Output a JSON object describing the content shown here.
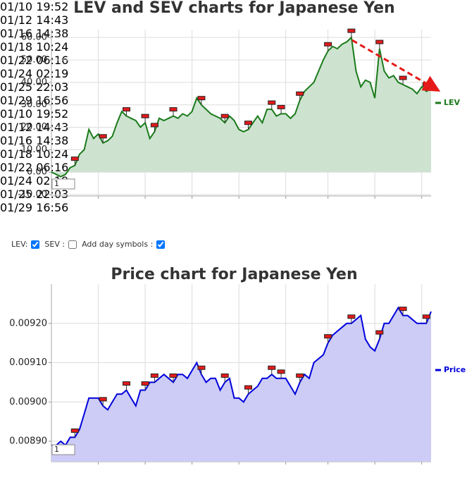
{
  "chart_data": [
    {
      "type": "line",
      "title": "LEV and SEV charts for Japanese Yen",
      "categories": [
        null,
        null,
        null,
        null,
        null,
        null,
        null,
        null,
        null,
        null,
        "01/10\n19:52",
        null,
        null,
        null,
        null,
        null,
        null,
        null,
        null,
        null,
        "01/12\n14:43",
        null,
        null,
        null,
        null,
        null,
        null,
        null,
        null,
        null,
        "01/16\n14:38",
        null,
        null,
        null,
        null,
        null,
        null,
        null,
        null,
        null,
        "01/18\n10:24",
        null,
        null,
        null,
        null,
        null,
        null,
        null,
        null,
        null,
        "01/22\n06:16",
        null,
        null,
        null,
        null,
        null,
        null,
        null,
        null,
        "01/24\n02:19",
        null,
        null,
        null,
        null,
        null,
        null,
        null,
        null,
        null,
        "01/25\n22:03",
        null,
        null,
        null,
        null,
        null,
        null,
        null,
        null,
        null,
        "01/29\n16:56",
        null,
        null
      ],
      "series": [
        {
          "name": "LEV",
          "color": "#1a7a1a",
          "fill": "#cde3d0",
          "values": [
            0,
            -1,
            -2,
            -1,
            2,
            3,
            8,
            10,
            19,
            15,
            17,
            13,
            14,
            16,
            22,
            27,
            25,
            24,
            23,
            20,
            22,
            15,
            18,
            24,
            23,
            24,
            25,
            24,
            26,
            25,
            27,
            33,
            30,
            28,
            26,
            25,
            24,
            22,
            25,
            23,
            19,
            18,
            19,
            22,
            25,
            22,
            28,
            28,
            25,
            26,
            26,
            24,
            26,
            32,
            36,
            38,
            40,
            45,
            50,
            54,
            56,
            55,
            57,
            58,
            60,
            45,
            38,
            41,
            40,
            33,
            55,
            45,
            42,
            43,
            40,
            39,
            38,
            37,
            35,
            38,
            36,
            37
          ]
        }
      ],
      "day_symbols": [
        5,
        11,
        16,
        20,
        22,
        26,
        32,
        37,
        42,
        47,
        49,
        53,
        59,
        64,
        70,
        75,
        80
      ],
      "ylim": [
        -10.6,
        63.5
      ],
      "yticks": [
        {
          "value": 60,
          "label": "60.00"
        },
        {
          "value": 50,
          "label": "50.00"
        },
        {
          "value": 40,
          "label": "40.00"
        },
        {
          "value": 30,
          "label": "30.00"
        },
        {
          "value": 20,
          "label": "20.00"
        },
        {
          "value": 10,
          "label": "10.00"
        },
        {
          "value": 0,
          "label": "0.00"
        },
        {
          "value": -10,
          "label": "-10.00"
        }
      ],
      "grid": true,
      "legend": "right",
      "range_box": "1"
    },
    {
      "type": "line",
      "title": "Price chart for Japanese Yen",
      "categories": [
        null,
        null,
        null,
        null,
        null,
        null,
        null,
        null,
        null,
        null,
        "01/10\n19:52",
        null,
        null,
        null,
        null,
        null,
        null,
        null,
        null,
        null,
        "01/12\n14:43",
        null,
        null,
        null,
        null,
        null,
        null,
        null,
        null,
        null,
        "01/16\n14:38",
        null,
        null,
        null,
        null,
        null,
        null,
        null,
        null,
        null,
        "01/18\n10:24",
        null,
        null,
        null,
        null,
        null,
        null,
        null,
        null,
        null,
        "01/22\n06:16",
        null,
        null,
        null,
        null,
        null,
        null,
        null,
        null,
        "01/24\n02:19",
        null,
        null,
        null,
        null,
        null,
        null,
        null,
        null,
        null,
        "01/25\n22:03",
        null,
        null,
        null,
        null,
        null,
        null,
        null,
        null,
        null,
        "01/29\n16:56",
        null,
        null
      ],
      "series": [
        {
          "name": "Price",
          "color": "#0000dd",
          "fill": "#ccccf6",
          "values": [
            0.00889,
            0.00889,
            0.0089,
            0.00889,
            0.00891,
            0.00891,
            0.00893,
            0.00897,
            0.00901,
            0.00901,
            0.00901,
            0.00899,
            0.00898,
            0.009,
            0.00902,
            0.00902,
            0.00903,
            0.00901,
            0.00899,
            0.00903,
            0.00903,
            0.00905,
            0.00905,
            0.00906,
            0.00907,
            0.00906,
            0.00905,
            0.00907,
            0.00907,
            0.00906,
            0.00908,
            0.0091,
            0.00907,
            0.00905,
            0.00906,
            0.00906,
            0.00903,
            0.00905,
            0.00906,
            0.00901,
            0.00901,
            0.009,
            0.00902,
            0.00903,
            0.00904,
            0.00906,
            0.00906,
            0.00907,
            0.00906,
            0.00906,
            0.00906,
            0.00904,
            0.00902,
            0.00905,
            0.00907,
            0.00906,
            0.0091,
            0.00911,
            0.00912,
            0.00915,
            0.00917,
            0.00918,
            0.00919,
            0.0092,
            0.0092,
            0.00921,
            0.00922,
            0.00916,
            0.00914,
            0.00913,
            0.00916,
            0.0092,
            0.0092,
            0.00922,
            0.00924,
            0.00922,
            0.00922,
            0.00921,
            0.0092,
            0.0092,
            0.0092,
            0.00923
          ]
        }
      ],
      "day_symbols": [
        5,
        11,
        16,
        20,
        22,
        26,
        32,
        37,
        42,
        47,
        49,
        53,
        59,
        64,
        70,
        75,
        80
      ],
      "ylim": [
        0.008848,
        0.0093
      ],
      "yticks": [
        {
          "value": 0.0092,
          "label": "0.00920"
        },
        {
          "value": 0.0091,
          "label": "0.00910"
        },
        {
          "value": 0.009,
          "label": "0.00900"
        },
        {
          "value": 0.0089,
          "label": "0.00890"
        }
      ],
      "grid": true,
      "legend": "right",
      "range_box": "1"
    }
  ],
  "controls": {
    "lev_label": "LEV:",
    "lev_checked": true,
    "sev_label": "SEV :",
    "sev_checked": false,
    "day_symbols_label": "Add day symbols :",
    "day_symbols_checked": true
  }
}
